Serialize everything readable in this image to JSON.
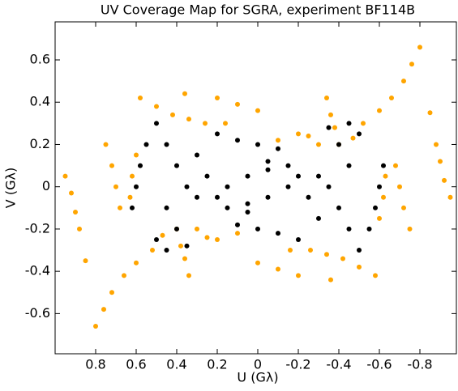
{
  "chart_data": {
    "type": "scatter",
    "title": "UV Coverage Map for SGRA, experiment BF114B",
    "x_label": "U (Gλ)",
    "y_label": "V (Gλ)",
    "xlim": [
      1.0,
      -0.98
    ],
    "ylim": [
      -0.79,
      0.78
    ],
    "xticks": [
      0.8,
      0.6,
      0.4,
      0.2,
      0,
      -0.2,
      -0.4,
      -0.6,
      -0.8
    ],
    "yticks": [
      -0.6,
      -0.4,
      -0.2,
      0,
      0.2,
      0.4,
      0.6
    ],
    "grid": false,
    "series": [
      {
        "color": "#ffa500",
        "x": [
          0.8,
          0.76,
          0.72,
          0.66,
          0.6,
          0.52,
          0.47,
          0.58,
          0.5,
          0.42,
          0.34,
          0.26,
          0.16,
          0.36,
          0.2,
          0.1,
          0,
          0.95,
          0.92,
          0.9,
          0.88,
          0.85,
          0.4,
          0.38,
          0.36,
          0.34,
          0.3,
          0.25,
          0.2,
          0.1,
          0.75,
          0.72,
          0.7,
          0.68,
          0.6,
          0.62,
          0.63,
          -0.8,
          -0.76,
          -0.72,
          -0.66,
          -0.6,
          -0.52,
          -0.47,
          -0.58,
          -0.5,
          -0.42,
          -0.34,
          -0.26,
          -0.16,
          -0.36,
          -0.2,
          -0.1,
          0,
          -0.95,
          -0.92,
          -0.9,
          -0.88,
          -0.85,
          -0.4,
          -0.38,
          -0.36,
          -0.34,
          -0.3,
          -0.25,
          -0.2,
          -0.1,
          -0.75,
          -0.72,
          -0.7,
          -0.68,
          -0.6,
          -0.62,
          -0.63
        ],
        "values": [
          -0.66,
          -0.58,
          -0.5,
          -0.42,
          -0.36,
          -0.3,
          -0.23,
          0.42,
          0.38,
          0.34,
          0.32,
          0.3,
          0.3,
          0.44,
          0.42,
          0.39,
          0.36,
          0.05,
          -0.03,
          -0.12,
          -0.2,
          -0.35,
          -0.2,
          -0.28,
          -0.34,
          -0.42,
          -0.2,
          -0.24,
          -0.25,
          -0.22,
          0.2,
          0.1,
          0,
          -0.1,
          0.15,
          0.05,
          -0.05,
          0.66,
          0.58,
          0.5,
          0.42,
          0.36,
          0.3,
          0.23,
          -0.42,
          -0.38,
          -0.34,
          -0.32,
          -0.3,
          -0.3,
          -0.44,
          -0.42,
          -0.39,
          -0.36,
          -0.05,
          0.03,
          0.12,
          0.2,
          0.35,
          0.2,
          0.28,
          0.34,
          0.42,
          0.2,
          0.24,
          0.25,
          0.22,
          -0.2,
          -0.1,
          0,
          0.1,
          -0.15,
          -0.05,
          0.05
        ]
      },
      {
        "color": "#000000",
        "x": [
          0.5,
          0.55,
          0.58,
          0.6,
          0.62,
          0.45,
          0.4,
          0.35,
          0.3,
          0.2,
          0.1,
          0,
          -0.1,
          0.3,
          0.25,
          0.2,
          0.15,
          0.05,
          0.15,
          0.05,
          -0.05,
          0.45,
          0.4,
          0.35,
          0.5,
          0.45,
          -0.5,
          -0.55,
          -0.58,
          -0.6,
          -0.62,
          -0.45,
          -0.4,
          -0.35,
          -0.3,
          -0.2,
          -0.1,
          0,
          0.1,
          -0.3,
          -0.25,
          -0.2,
          -0.15,
          -0.05,
          -0.15,
          -0.05,
          0.05,
          -0.45,
          -0.4,
          -0.35,
          -0.5,
          -0.45
        ],
        "values": [
          0.3,
          0.2,
          0.1,
          0,
          -0.1,
          0.2,
          0.1,
          0,
          -0.05,
          0.25,
          0.22,
          0.2,
          0.18,
          0.15,
          0.05,
          -0.05,
          -0.1,
          -0.12,
          0,
          0.05,
          0.08,
          -0.1,
          -0.2,
          -0.28,
          -0.25,
          -0.3,
          -0.3,
          -0.2,
          -0.1,
          0,
          0.1,
          -0.2,
          -0.1,
          0,
          0.05,
          -0.25,
          -0.22,
          -0.2,
          -0.18,
          -0.15,
          -0.05,
          0.05,
          0.1,
          0.12,
          0,
          -0.05,
          -0.08,
          0.1,
          0.2,
          0.28,
          0.25,
          0.3
        ]
      }
    ]
  }
}
